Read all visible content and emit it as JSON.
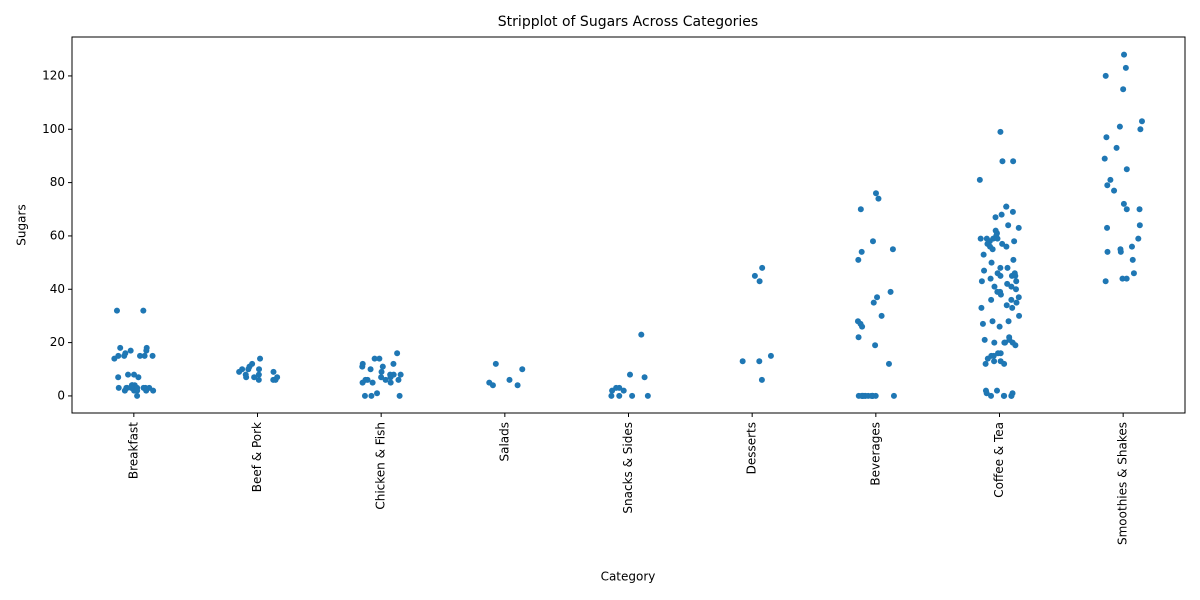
{
  "chart_data": {
    "type": "strip",
    "title": "Stripplot of Sugars Across Categories",
    "x_label": "Category",
    "y_label": "Sugars",
    "color": "#1f77b4",
    "categories": [
      "Breakfast",
      "Beef & Pork",
      "Chicken & Fish",
      "Salads",
      "Snacks & Sides",
      "Desserts",
      "Beverages",
      "Coffee & Tea",
      "Smoothies & Shakes"
    ],
    "values": [
      [
        32,
        32,
        17,
        18,
        18,
        17,
        15,
        15,
        16,
        15,
        14,
        15,
        15,
        8,
        7,
        8,
        7,
        4,
        4,
        3,
        3,
        3,
        3,
        2,
        2,
        2,
        3,
        4,
        3,
        3,
        2,
        3,
        0,
        4,
        3,
        2
      ],
      [
        14,
        12,
        11,
        10,
        10,
        9,
        9,
        8,
        7,
        7,
        7,
        6,
        6,
        6,
        10,
        8
      ],
      [
        14,
        14,
        16,
        12,
        12,
        11,
        11,
        10,
        9,
        8,
        8,
        8,
        7,
        7,
        6,
        6,
        6,
        5,
        5,
        5,
        6,
        1,
        0,
        0,
        0
      ],
      [
        12,
        10,
        6,
        5,
        4,
        4
      ],
      [
        23,
        8,
        7,
        3,
        3,
        2,
        2,
        0,
        0,
        0,
        0
      ],
      [
        48,
        45,
        43,
        15,
        13,
        13,
        6
      ],
      [
        76,
        74,
        70,
        58,
        55,
        54,
        51,
        39,
        37,
        35,
        30,
        28,
        27,
        26,
        22,
        19,
        12,
        0,
        0,
        0,
        0,
        0,
        0,
        0,
        0,
        0,
        0,
        0,
        0,
        0,
        0
      ],
      [
        99,
        88,
        88,
        81,
        71,
        71,
        69,
        68,
        67,
        64,
        63,
        62,
        61,
        60,
        59,
        59,
        59,
        59,
        58,
        58,
        57,
        57,
        56,
        56,
        55,
        53,
        51,
        50,
        48,
        48,
        47,
        46,
        46,
        45,
        45,
        45,
        44,
        43,
        43,
        42,
        41,
        41,
        40,
        39,
        39,
        38,
        37,
        36,
        36,
        35,
        34,
        33,
        33,
        30,
        28,
        28,
        27,
        26,
        22,
        21,
        21,
        20,
        20,
        20,
        20,
        19,
        16,
        16,
        15,
        15,
        14,
        13,
        13,
        12,
        12,
        2,
        2,
        1,
        1,
        0,
        0,
        0,
        0,
        0
      ],
      [
        128,
        123,
        120,
        115,
        103,
        101,
        100,
        97,
        93,
        89,
        85,
        81,
        79,
        77,
        72,
        70,
        70,
        64,
        63,
        59,
        56,
        55,
        54,
        54,
        51,
        46,
        44,
        44,
        43
      ]
    ],
    "ylim": [
      -6.4,
      134.6
    ],
    "yticks": [
      0,
      20,
      40,
      60,
      80,
      100,
      120
    ]
  }
}
